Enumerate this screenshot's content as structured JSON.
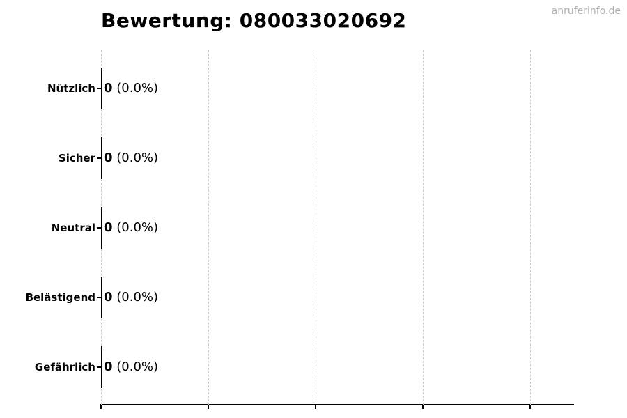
{
  "page": {
    "watermark": "anruferinfo.de"
  },
  "chart_data": {
    "type": "bar",
    "orientation": "horizontal",
    "title": "Bewertung: 080033020692",
    "categories": [
      "Nützlich",
      "Sicher",
      "Neutral",
      "Belästigend",
      "Gefährlich"
    ],
    "values": [
      0,
      0,
      0,
      0,
      0
    ],
    "counts": [
      "0",
      "0",
      "0",
      "0",
      "0"
    ],
    "percent_labels": [
      "(0.0%)",
      "(0.0%)",
      "(0.0%)",
      "(0.0%)",
      "(0.0%)"
    ],
    "xlabel": "",
    "ylabel": "",
    "xlim": [
      0,
      4.4
    ],
    "x_tick_count": 5,
    "x_tick_labels": [],
    "grid": {
      "axis": "x",
      "style": "dashed",
      "color": "#cccccc"
    },
    "legend": "none",
    "colors": {
      "bar_edge": "#000000",
      "text": "#000000",
      "grid": "#cccccc",
      "watermark": "#b0b0b0",
      "background": "#ffffff"
    }
  }
}
